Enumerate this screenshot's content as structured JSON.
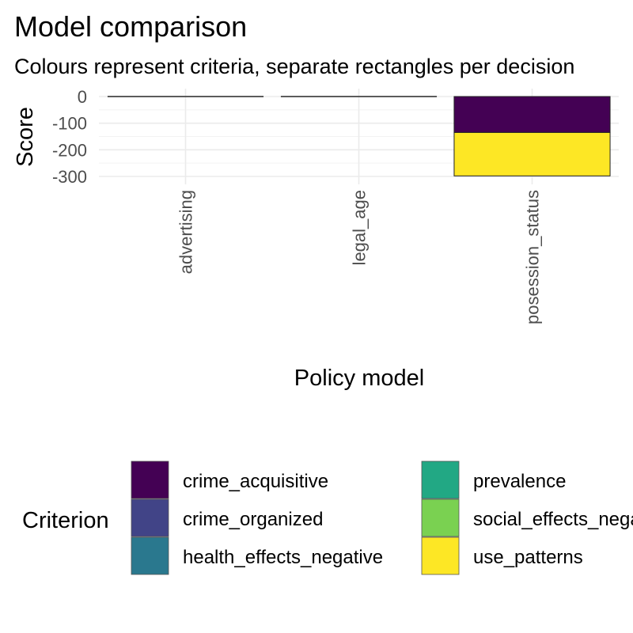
{
  "chart_data": {
    "type": "bar",
    "stacked": true,
    "title": "Model comparison",
    "subtitle": "Colours represent criteria, separate rectangles per decision",
    "xlabel": "Policy model",
    "ylabel": "Score",
    "categories": [
      "advertising",
      "legal_age",
      "posession_status"
    ],
    "ylim": [
      -300,
      0
    ],
    "y_ticks": [
      0,
      -100,
      -200,
      -300
    ],
    "y_tick_labels": [
      "0",
      "-100",
      "-200",
      "-300"
    ],
    "grid": true,
    "legend": {
      "title": "Criterion",
      "position": "bottom",
      "columns": 2,
      "entries": [
        {
          "label": "crime_acquisitive",
          "color": "#440154"
        },
        {
          "label": "crime_organized",
          "color": "#414487"
        },
        {
          "label": "health_effects_negative",
          "color": "#2A788E"
        },
        {
          "label": "prevalence",
          "color": "#22A884"
        },
        {
          "label": "social_effects_negative",
          "color": "#7AD151"
        },
        {
          "label": "use_patterns",
          "color": "#FDE725"
        }
      ]
    },
    "series": [
      {
        "name": "crime_acquisitive",
        "color": "#440154",
        "values": [
          0,
          0,
          -135
        ]
      },
      {
        "name": "use_patterns",
        "color": "#FDE725",
        "values": [
          0,
          0,
          -163
        ]
      }
    ]
  }
}
